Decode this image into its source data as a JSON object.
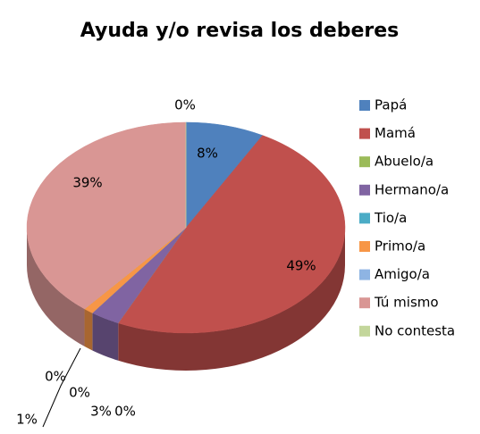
{
  "chart_data": {
    "type": "pie3d",
    "title": "Ayuda y/o revisa los deberes",
    "categories": [
      "Papá",
      "Mamá",
      "Abuelo/a",
      "Hermano/a",
      "Tio/a",
      "Primo/a",
      "Amigo/a",
      "Tú mismo",
      "No contesta"
    ],
    "values": [
      8,
      49,
      0,
      3,
      0,
      1,
      0,
      39,
      0
    ],
    "value_labels": [
      "8%",
      "49%",
      "0%",
      "3%",
      "0%",
      "1%",
      "0%",
      "39%",
      "0%"
    ],
    "colors": [
      "#4f81bd",
      "#c0504d",
      "#9bbb59",
      "#8064a2",
      "#4bacc6",
      "#f79646",
      "#8eb4e3",
      "#d99694",
      "#c3d69b"
    ],
    "legend": "right"
  }
}
